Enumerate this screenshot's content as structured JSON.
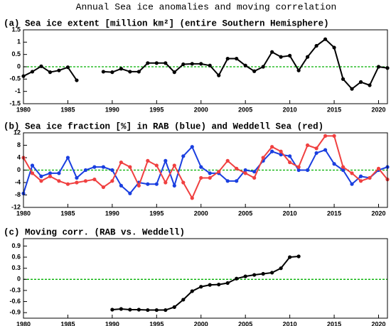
{
  "title": "Annual Sea ice anomalies and moving correlation",
  "chart_data": [
    {
      "type": "line",
      "title": "(a) Sea ice extent [million km²] (entire Southern Hemisphere)",
      "x": [
        1980,
        1981,
        1982,
        1983,
        1984,
        1985,
        1986,
        1987,
        1988,
        1989,
        1990,
        1991,
        1992,
        1993,
        1994,
        1995,
        1996,
        1997,
        1998,
        1999,
        2000,
        2001,
        2002,
        2003,
        2004,
        2005,
        2006,
        2007,
        2008,
        2009,
        2010,
        2011,
        2012,
        2013,
        2014,
        2015,
        2016,
        2017,
        2018,
        2019,
        2020,
        2021
      ],
      "values": [
        -0.38,
        -0.2,
        0.02,
        -0.22,
        -0.15,
        -0.02,
        -0.55,
        null,
        null,
        -0.2,
        -0.22,
        -0.08,
        -0.2,
        -0.2,
        0.15,
        0.15,
        0.15,
        -0.22,
        0.1,
        0.12,
        0.12,
        0.05,
        -0.35,
        0.33,
        0.33,
        0.05,
        -0.18,
        0.0,
        0.6,
        0.4,
        0.45,
        -0.15,
        0.4,
        0.85,
        1.12,
        0.78,
        -0.5,
        -0.9,
        -0.62,
        -0.75,
        0.0,
        -0.05
      ],
      "color": "#000000",
      "xlim": [
        1980,
        2021
      ],
      "xticks": [
        1980,
        1985,
        1990,
        1995,
        2000,
        2005,
        2010,
        2015,
        2020
      ],
      "ylim": [
        -1.5,
        1.5
      ],
      "yticks": [
        -1.5,
        -1,
        -0.5,
        0,
        0.5,
        1,
        1.5
      ],
      "zero_line_color": "#00b000"
    },
    {
      "type": "line",
      "title": "(b) Sea ice fraction [%] in RAB (blue) and Weddell Sea (red)",
      "x": [
        1980,
        1981,
        1982,
        1983,
        1984,
        1985,
        1986,
        1987,
        1988,
        1989,
        1990,
        1991,
        1992,
        1993,
        1994,
        1995,
        1996,
        1997,
        1998,
        1999,
        2000,
        2001,
        2002,
        2003,
        2004,
        2005,
        2006,
        2007,
        2008,
        2009,
        2010,
        2011,
        2012,
        2013,
        2014,
        2015,
        2016,
        2017,
        2018,
        2019,
        2020,
        2021
      ],
      "series": [
        {
          "color": "#1a3fe0",
          "values": [
            -7.5,
            1.5,
            -2,
            -1,
            -1,
            4,
            -2.5,
            0,
            1,
            1,
            0,
            -5,
            -7.5,
            -4,
            -4.5,
            -4.5,
            3,
            -5,
            4.5,
            7.5,
            1,
            -1,
            -1,
            -3.5,
            -3.5,
            0,
            -0.5,
            3,
            6,
            5,
            4.5,
            0,
            0,
            5.5,
            6.5,
            2,
            0,
            -4.5,
            -2,
            -2.5,
            0,
            1
          ]
        },
        {
          "color": "#f04040",
          "values": [
            4,
            -1,
            -3.5,
            -2,
            -3.5,
            -4.5,
            -4,
            -3.5,
            -3,
            -5.5,
            -3.5,
            2.5,
            1,
            -5,
            3,
            1.5,
            -4,
            1.5,
            -4,
            -9,
            -2.5,
            -2.5,
            -0.5,
            3,
            0.5,
            -1,
            -2.5,
            4,
            7.5,
            6,
            2.5,
            1,
            8,
            7,
            11,
            11,
            1,
            -1,
            -3.5,
            -2.5,
            0.5,
            -3
          ]
        }
      ],
      "xlim": [
        1980,
        2021
      ],
      "xticks": [
        1980,
        1985,
        1990,
        1995,
        2000,
        2005,
        2010,
        2015,
        2020
      ],
      "ylim": [
        -12,
        12
      ],
      "yticks": [
        -12,
        -8,
        -4,
        0,
        4,
        8,
        12
      ],
      "zero_line_color": "#00b000"
    },
    {
      "type": "line",
      "title": "(c) Moving corr. (RAB vs. Weddell)",
      "x": [
        1990,
        1991,
        1992,
        1993,
        1994,
        1995,
        1996,
        1997,
        1998,
        1999,
        2000,
        2001,
        2002,
        2003,
        2004,
        2005,
        2006,
        2007,
        2008,
        2009,
        2010,
        2011
      ],
      "values": [
        -0.82,
        -0.8,
        -0.82,
        -0.82,
        -0.83,
        -0.83,
        -0.83,
        -0.75,
        -0.55,
        -0.32,
        -0.2,
        -0.15,
        -0.14,
        -0.1,
        0.02,
        0.08,
        0.12,
        0.15,
        0.18,
        0.3,
        0.6,
        0.62
      ],
      "color": "#000000",
      "xlim": [
        1980,
        2021
      ],
      "xticks": [
        1980,
        1985,
        1990,
        1995,
        2000,
        2005,
        2010,
        2015,
        2020
      ],
      "ylim": [
        -1.05,
        1.1
      ],
      "yticks": [
        -0.9,
        -0.6,
        -0.3,
        0,
        0.3,
        0.6,
        0.9
      ],
      "zero_line_color": "#00b000"
    }
  ]
}
